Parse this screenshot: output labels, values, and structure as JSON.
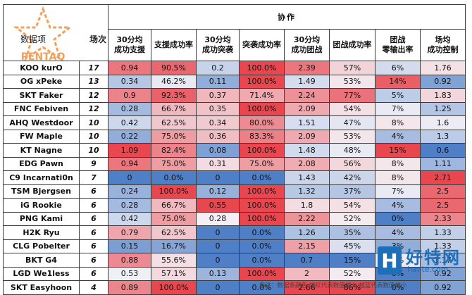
{
  "corner": {
    "item_label": "数据项",
    "games_label": "场次",
    "logo_text": "PENTAQ"
  },
  "section_title": "协作",
  "columns": [
    "30分均 成功支援",
    "支援成功率",
    "30分均 成功突袭",
    "突袭成功率",
    "30分均 成功团战",
    "团战成功率",
    "团战 零输出率",
    "场均 成功控制"
  ],
  "rows": [
    {
      "player": "KOO kurO",
      "games": "17",
      "v": [
        "0.94",
        "90.5%",
        "0.2",
        "100.0%",
        "2.39",
        "57%",
        "6%",
        "1.76"
      ]
    },
    {
      "player": "OG xPeke",
      "games": "13",
      "v": [
        "0.34",
        "46.2%",
        "0.11",
        "100.0%",
        "1.49",
        "53%",
        "14%",
        "0.92"
      ]
    },
    {
      "player": "SKT Faker",
      "games": "12",
      "v": [
        "0.9",
        "92.3%",
        "0.37",
        "71.4%",
        "2.24",
        "77%",
        "5%",
        "1.83"
      ]
    },
    {
      "player": "FNC Febiven",
      "games": "12",
      "v": [
        "0.28",
        "66.7%",
        "0.35",
        "100.0%",
        "2.09",
        "54%",
        "7%",
        "1.25"
      ]
    },
    {
      "player": "AHQ Westdoor",
      "games": "10",
      "v": [
        "0.42",
        "62.5%",
        "0.34",
        "80.0%",
        "1.51",
        "47%",
        "8%",
        "1.6"
      ]
    },
    {
      "player": "FW Maple",
      "games": "10",
      "v": [
        "0.22",
        "75.0%",
        "0.36",
        "83.3%",
        "2.09",
        "53%",
        "4%",
        "1.3"
      ]
    },
    {
      "player": "KT Nagne",
      "games": "10",
      "v": [
        "1.09",
        "82.4%",
        "0.08",
        "100.0%",
        "1.48",
        "48%",
        "15%",
        "0.6"
      ]
    },
    {
      "player": "EDG Pawn",
      "games": "9",
      "v": [
        "0.94",
        "75.0%",
        "0.31",
        "75.0%",
        "2.08",
        "56%",
        "8%",
        "1.11"
      ]
    },
    {
      "player": "C9 Incarnati0n",
      "games": "7",
      "v": [
        "0",
        "0.0%",
        "0",
        "0.0%",
        "1.43",
        "42%",
        "8%",
        "2.71"
      ]
    },
    {
      "player": "TSM Bjergsen",
      "games": "6",
      "v": [
        "0.24",
        "100.0%",
        "0.12",
        "100.0%",
        "1.32",
        "37%",
        "7%",
        "2.5"
      ]
    },
    {
      "player": "iG Rookie",
      "games": "6",
      "v": [
        "0.28",
        "66.7%",
        "0.55",
        "100.0%",
        "1.8",
        "54%",
        "4%",
        "2.5"
      ]
    },
    {
      "player": "PNG Kami",
      "games": "6",
      "v": [
        "0.42",
        "75.0%",
        "0.28",
        "100.0%",
        "2.22",
        "52%",
        "0%",
        "2.33"
      ]
    },
    {
      "player": "H2K Ryu",
      "games": "6",
      "v": [
        "0.79",
        "62.5%",
        "0",
        "0.0%",
        "1.26",
        "35%",
        "4%",
        "1.33"
      ]
    },
    {
      "player": "CLG Pobelter",
      "games": "6",
      "v": [
        "0.15",
        "16.7%",
        "0",
        "0.0%",
        "2.15",
        "45%",
        "3%",
        "1.33"
      ]
    },
    {
      "player": "BKT G4",
      "games": "6",
      "v": [
        "0.88",
        "55.6%",
        "0",
        "0.0%",
        "0.7",
        "15%",
        "7%",
        "1.17"
      ]
    },
    {
      "player": "LGD We1less",
      "games": "6",
      "v": [
        "0.53",
        "57.1%",
        "0.13",
        "100.0%",
        "2",
        "52%",
        "0%",
        "0.92"
      ]
    },
    {
      "player": "SKT Easyhoon",
      "games": "4",
      "v": [
        "0.89",
        "100.0%",
        "0",
        "0.0%",
        "2.66",
        "86%",
        "0%",
        "0.92"
      ]
    }
  ],
  "colors": {
    "hot": "#e8474f",
    "cold": "#4f7fc6",
    "neutral": "#f4f2f7"
  },
  "watermark": {
    "box_letter": "H",
    "name": "好特网",
    "url": "haote.com"
  },
  "footnote": "备注：数据条颜色 越红代表数值越大 越蓝代表数值越小"
}
